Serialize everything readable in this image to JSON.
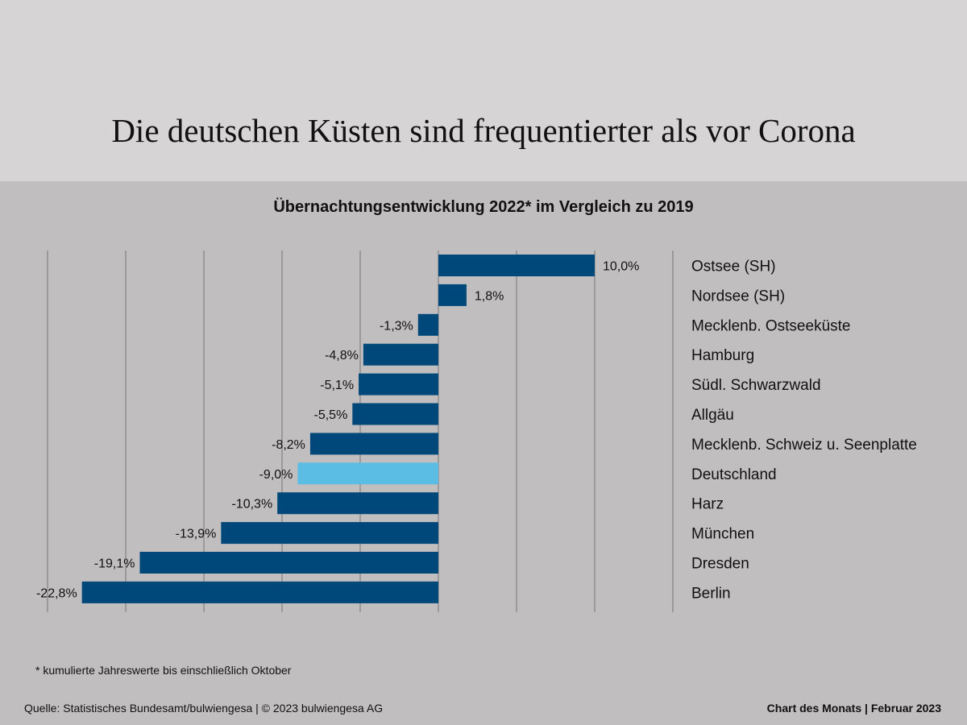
{
  "header": {
    "title": "Die deutschen Küsten sind frequentierter als vor Corona"
  },
  "footer": {
    "note": "* kumulierte Jahreswerte bis einschließlich Oktober",
    "source": "Quelle: Statistisches Bundesamt/bulwiengesa | © 2023 bulwiengesa AG",
    "brand": "Chart des Monats | Februar 2023"
  },
  "colors": {
    "bar": "#00487a",
    "highlight": "#5bbde4",
    "grid": "#8f8d8e"
  },
  "chart_data": {
    "type": "bar",
    "orientation": "horizontal",
    "title": "Übernachtungsentwicklung 2022* im Vergleich zu 2019",
    "xlabel": "",
    "ylabel": "",
    "xlim": [
      -25,
      15
    ],
    "grid": true,
    "gridlines": [
      -25,
      -20,
      -15,
      -10,
      -5,
      0,
      5,
      10,
      15
    ],
    "categories": [
      "Ostsee (SH)",
      "Nordsee (SH)",
      "Mecklenb. Ostseeküste",
      "Hamburg",
      "Südl. Schwarzwald",
      "Allgäu",
      "Mecklenb. Schweiz u. Seenplatte",
      "Deutschland",
      "Harz",
      "München",
      "Dresden",
      "Berlin"
    ],
    "values": [
      10.0,
      1.8,
      -1.3,
      -4.8,
      -5.1,
      -5.5,
      -8.2,
      -9.0,
      -10.3,
      -13.9,
      -19.1,
      -22.8
    ],
    "labels": [
      "10,0%",
      "1,8%",
      "-1,3%",
      "-4,8%",
      "-5,1%",
      "-5,5%",
      "-8,2%",
      "-9,0%",
      "-10,3%",
      "-13,9%",
      "-19,1%",
      "-22,8%"
    ],
    "highlight": "Deutschland"
  }
}
